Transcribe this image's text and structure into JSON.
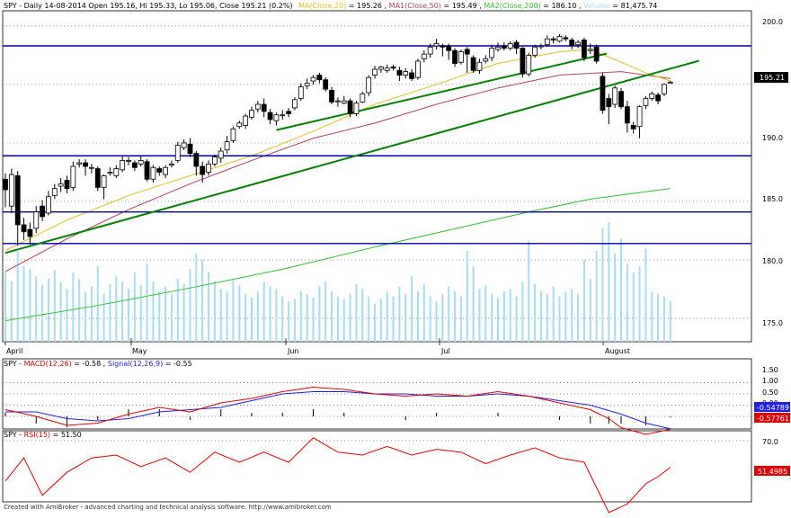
{
  "header": {
    "symbol": "SPY",
    "description": "Daily 14-08-2014 Open 195.16, Hi 195.33, Lo 195.06, Close 195.21 (0.2%)",
    "ma20_label": "MA(Close,20)",
    "ma20_value": "195.26",
    "ma50_label": "MA1(Close,50)",
    "ma50_value": "195.49",
    "ma200_label": "MA2(Close,200)",
    "ma200_value": "186.10",
    "volume_label": "Volume",
    "volume_value": "81,475.74"
  },
  "colors": {
    "ma20": "#e0c020",
    "ma50": "#b04060",
    "ma200": "#30c030",
    "volume": "#a8dcee",
    "hline": "#0000aa",
    "trend": "#008000",
    "macd": "#e00000",
    "signal": "#2020e0",
    "rsi": "#e00000"
  },
  "price_axis": {
    "ticks": [
      "200.0",
      "195.0",
      "190.0",
      "185.0",
      "180.0",
      "175.0"
    ],
    "last_label": "195.21"
  },
  "macd_panel": {
    "label_sym": "SPY",
    "macd_label": "MACD(12,26)",
    "macd_value": "-0.58",
    "signal_label": "Signal(12,26,9)",
    "signal_value": "-0.55",
    "ticks": [
      "1.50",
      "1.00",
      "0.50",
      "0.00"
    ],
    "signal_last": "-0.54789",
    "macd_last": "-0.57761"
  },
  "rsi_panel": {
    "label_sym": "SPY",
    "rsi_label": "RSI(15)",
    "rsi_value": "51.50",
    "ticks": [
      "70.0"
    ],
    "rsi_last": "51.4985"
  },
  "months": [
    "April",
    "May",
    "Jun",
    "Jul",
    "August"
  ],
  "footer": "Created with AmiBroker - advanced charting and technical analysis software. http://www.amibroker.com",
  "chart_data": {
    "type": "candlestick",
    "ylim": [
      173,
      201.3
    ],
    "horizontal_levels": [
      198.3,
      188.9,
      184.1,
      181.4
    ],
    "trendlines": [
      {
        "from": [
          0,
          180.6
        ],
        "to": [
          109,
          196.5
        ]
      },
      {
        "from": [
          44,
          191.1
        ],
        "to": [
          94,
          197.2
        ]
      }
    ],
    "candles": [
      [
        186.9,
        186.0,
        187.4,
        184.5
      ],
      [
        184.6,
        187.3,
        187.8,
        184.0
      ],
      [
        187.2,
        183.0,
        187.6,
        181.2
      ],
      [
        183.0,
        182.4,
        183.6,
        181.7
      ],
      [
        182.6,
        182.0,
        183.2,
        181.3
      ],
      [
        182.7,
        184.1,
        184.6,
        182.3
      ],
      [
        184.6,
        183.7,
        185.1,
        183.3
      ],
      [
        184.0,
        185.4,
        185.9,
        183.8
      ],
      [
        185.5,
        186.1,
        186.5,
        185.2
      ],
      [
        186.3,
        186.5,
        187.0,
        185.8
      ],
      [
        186.8,
        186.1,
        187.2,
        185.7
      ],
      [
        186.2,
        188.0,
        188.4,
        185.9
      ],
      [
        188.2,
        188.3,
        188.6,
        187.9
      ],
      [
        188.3,
        188.0,
        188.6,
        187.2
      ],
      [
        187.9,
        187.9,
        188.2,
        187.4
      ],
      [
        187.8,
        186.2,
        188.0,
        185.9
      ],
      [
        186.2,
        187.2,
        187.3,
        185.2
      ],
      [
        187.4,
        187.5,
        187.9,
        187.2
      ],
      [
        187.2,
        187.8,
        188.1,
        187.0
      ],
      [
        187.7,
        188.5,
        188.9,
        187.5
      ],
      [
        188.5,
        188.5,
        188.8,
        188.1
      ],
      [
        188.3,
        187.9,
        188.5,
        187.6
      ],
      [
        188.2,
        188.5,
        188.9,
        188.0
      ],
      [
        188.4,
        186.9,
        188.6,
        186.7
      ],
      [
        186.9,
        187.9,
        188.1,
        186.6
      ],
      [
        187.8,
        187.5,
        188.0,
        187.2
      ],
      [
        187.3,
        187.9,
        188.1,
        187.0
      ],
      [
        188.1,
        188.2,
        188.5,
        187.9
      ],
      [
        188.5,
        189.8,
        190.1,
        188.3
      ],
      [
        189.6,
        190.0,
        190.3,
        189.4
      ],
      [
        189.9,
        189.1,
        190.4,
        188.8
      ],
      [
        189.1,
        188.0,
        189.3,
        187.2
      ],
      [
        188.0,
        187.3,
        188.4,
        186.6
      ],
      [
        187.5,
        188.2,
        188.5,
        187.2
      ],
      [
        188.2,
        188.8,
        189.0,
        188.0
      ],
      [
        188.7,
        189.3,
        189.6,
        188.3
      ],
      [
        189.4,
        190.1,
        190.6,
        189.1
      ],
      [
        190.2,
        191.2,
        191.4,
        190.0
      ],
      [
        191.4,
        191.7,
        191.9,
        191.2
      ],
      [
        191.5,
        192.3,
        192.5,
        191.2
      ],
      [
        192.2,
        192.8,
        193.1,
        192.0
      ],
      [
        192.9,
        193.3,
        193.6,
        192.6
      ],
      [
        193.3,
        192.7,
        193.8,
        192.2
      ],
      [
        192.6,
        192.0,
        192.9,
        191.6
      ],
      [
        191.9,
        192.4,
        192.6,
        191.5
      ],
      [
        192.4,
        192.4,
        192.8,
        192.0
      ],
      [
        192.7,
        192.5,
        193.0,
        192.2
      ],
      [
        193.0,
        193.7,
        193.9,
        192.8
      ],
      [
        193.8,
        194.8,
        195.1,
        193.6
      ],
      [
        194.9,
        195.1,
        195.5,
        194.6
      ],
      [
        195.3,
        195.6,
        195.8,
        195.0
      ],
      [
        195.8,
        195.4,
        196.0,
        195.1
      ],
      [
        195.4,
        194.6,
        195.6,
        194.4
      ],
      [
        194.5,
        193.5,
        194.8,
        193.3
      ],
      [
        193.6,
        193.6,
        193.9,
        193.1
      ],
      [
        193.4,
        193.6,
        194.0,
        193.3
      ],
      [
        193.6,
        192.5,
        193.8,
        192.2
      ],
      [
        192.5,
        193.4,
        193.6,
        192.3
      ],
      [
        193.5,
        194.2,
        194.4,
        193.4
      ],
      [
        194.3,
        195.6,
        195.8,
        194.0
      ],
      [
        195.8,
        196.3,
        196.6,
        195.5
      ],
      [
        196.3,
        196.5,
        196.6,
        196.0
      ],
      [
        196.2,
        196.4,
        196.7,
        196.0
      ],
      [
        196.5,
        196.4,
        196.7,
        196.2
      ],
      [
        196.2,
        195.8,
        196.5,
        195.3
      ],
      [
        195.8,
        196.1,
        196.4,
        195.5
      ],
      [
        196.0,
        195.5,
        196.3,
        195.3
      ],
      [
        195.6,
        197.0,
        197.2,
        195.4
      ],
      [
        197.2,
        197.6,
        197.9,
        196.9
      ],
      [
        197.6,
        198.2,
        198.5,
        197.3
      ],
      [
        198.3,
        198.5,
        198.9,
        198.0
      ],
      [
        198.3,
        198.2,
        198.5,
        197.4
      ],
      [
        198.3,
        197.9,
        198.5,
        197.1
      ],
      [
        197.9,
        196.8,
        198.1,
        196.5
      ],
      [
        196.9,
        197.8,
        198.0,
        196.7
      ],
      [
        198.0,
        197.6,
        198.2,
        196.0
      ],
      [
        197.3,
        196.2,
        197.5,
        196.0
      ],
      [
        196.2,
        196.9,
        197.2,
        195.9
      ],
      [
        197.0,
        197.2,
        197.5,
        196.8
      ],
      [
        197.3,
        198.1,
        198.4,
        197.0
      ],
      [
        198.0,
        198.2,
        198.6,
        197.8
      ],
      [
        198.3,
        198.1,
        198.6,
        197.9
      ],
      [
        198.1,
        198.5,
        198.7,
        197.9
      ],
      [
        198.6,
        198.1,
        198.8,
        197.6
      ],
      [
        198.1,
        195.9,
        198.2,
        195.6
      ],
      [
        195.9,
        197.5,
        197.7,
        195.7
      ],
      [
        197.5,
        198.2,
        198.4,
        197.3
      ],
      [
        198.3,
        198.3,
        198.5,
        198.0
      ],
      [
        198.4,
        198.9,
        199.2,
        198.2
      ],
      [
        198.9,
        198.8,
        199.1,
        198.5
      ],
      [
        198.7,
        199.1,
        199.3,
        198.6
      ],
      [
        199.0,
        198.9,
        199.2,
        198.7
      ],
      [
        198.8,
        198.3,
        199.0,
        198.0
      ],
      [
        198.4,
        198.6,
        198.8,
        198.1
      ],
      [
        198.8,
        197.3,
        199.0,
        197.0
      ],
      [
        197.9,
        198.0,
        198.5,
        197.6
      ],
      [
        198.2,
        197.0,
        198.4,
        196.8
      ],
      [
        195.7,
        192.8,
        196.0,
        192.5
      ],
      [
        193.8,
        193.1,
        194.2,
        191.6
      ],
      [
        193.3,
        194.7,
        194.9,
        193.0
      ],
      [
        194.4,
        193.1,
        194.7,
        192.9
      ],
      [
        193.1,
        191.7,
        193.6,
        190.9
      ],
      [
        191.5,
        191.2,
        191.8,
        190.8
      ],
      [
        191.4,
        193.1,
        193.2,
        190.4
      ],
      [
        193.2,
        193.8,
        194.0,
        192.9
      ],
      [
        193.8,
        194.2,
        194.4,
        193.6
      ],
      [
        194.1,
        193.6,
        194.3,
        193.3
      ],
      [
        194.2,
        195.0,
        195.1,
        194.0
      ],
      [
        195.2,
        195.2,
        195.3,
        195.1
      ]
    ],
    "ma20": [
      [
        0,
        180.8
      ],
      [
        10,
        183.4
      ],
      [
        20,
        185.5
      ],
      [
        30,
        187.2
      ],
      [
        40,
        188.9
      ],
      [
        50,
        191.0
      ],
      [
        60,
        193.3
      ],
      [
        70,
        195.0
      ],
      [
        80,
        196.8
      ],
      [
        90,
        197.8
      ],
      [
        95,
        198.0
      ],
      [
        100,
        196.9
      ],
      [
        104,
        196.0
      ],
      [
        108,
        195.3
      ]
    ],
    "ma50": [
      [
        0,
        179.0
      ],
      [
        10,
        181.8
      ],
      [
        20,
        184.3
      ],
      [
        30,
        186.5
      ],
      [
        40,
        188.5
      ],
      [
        50,
        190.4
      ],
      [
        60,
        191.7
      ],
      [
        70,
        193.3
      ],
      [
        80,
        194.7
      ],
      [
        90,
        195.8
      ],
      [
        100,
        196.1
      ],
      [
        108,
        195.5
      ]
    ],
    "ma200": [
      [
        0,
        174.8
      ],
      [
        15,
        176.1
      ],
      [
        30,
        177.6
      ],
      [
        45,
        179.2
      ],
      [
        60,
        181.1
      ],
      [
        75,
        182.9
      ],
      [
        85,
        184.1
      ],
      [
        95,
        185.2
      ],
      [
        108,
        186.1
      ]
    ],
    "volume": [
      55,
      48,
      72,
      60,
      58,
      52,
      45,
      50,
      57,
      47,
      42,
      55,
      50,
      40,
      44,
      60,
      38,
      46,
      52,
      48,
      42,
      55,
      45,
      62,
      48,
      40,
      44,
      38,
      50,
      46,
      58,
      70,
      65,
      55,
      48,
      42,
      40,
      50,
      45,
      38,
      35,
      40,
      48,
      44,
      42,
      36,
      32,
      34,
      40,
      38,
      35,
      44,
      48,
      40,
      36,
      34,
      38,
      46,
      42,
      36,
      30,
      34,
      40,
      36,
      44,
      38,
      52,
      40,
      46,
      36,
      32,
      38,
      44,
      40,
      36,
      72,
      60,
      42,
      45,
      38,
      35,
      40,
      42,
      36,
      48,
      80,
      46,
      40,
      38,
      44,
      36,
      40,
      42,
      38,
      65,
      50,
      72,
      90,
      95,
      70,
      82,
      62,
      55,
      60,
      74,
      40,
      38,
      36,
      32
    ],
    "macd": [
      [
        0,
        0.3
      ],
      [
        5,
        0.0
      ],
      [
        10,
        -0.4
      ],
      [
        15,
        -0.3
      ],
      [
        20,
        0.1
      ],
      [
        25,
        0.4
      ],
      [
        30,
        0.2
      ],
      [
        35,
        0.6
      ],
      [
        40,
        0.8
      ],
      [
        45,
        1.1
      ],
      [
        50,
        1.3
      ],
      [
        55,
        1.2
      ],
      [
        60,
        1.0
      ],
      [
        65,
        0.9
      ],
      [
        70,
        1.0
      ],
      [
        75,
        0.9
      ],
      [
        80,
        1.1
      ],
      [
        85,
        0.9
      ],
      [
        90,
        0.6
      ],
      [
        95,
        0.3
      ],
      [
        98,
        -0.1
      ],
      [
        100,
        -0.5
      ],
      [
        104,
        -0.8
      ],
      [
        108,
        -0.58
      ]
    ],
    "signal": [
      [
        0,
        0.2
      ],
      [
        5,
        0.2
      ],
      [
        10,
        -0.1
      ],
      [
        15,
        -0.2
      ],
      [
        20,
        -0.1
      ],
      [
        25,
        0.2
      ],
      [
        30,
        0.3
      ],
      [
        35,
        0.4
      ],
      [
        40,
        0.7
      ],
      [
        45,
        1.0
      ],
      [
        50,
        1.1
      ],
      [
        55,
        1.1
      ],
      [
        60,
        1.0
      ],
      [
        65,
        1.0
      ],
      [
        70,
        0.9
      ],
      [
        75,
        0.9
      ],
      [
        80,
        1.0
      ],
      [
        85,
        0.9
      ],
      [
        90,
        0.7
      ],
      [
        95,
        0.5
      ],
      [
        100,
        0.1
      ],
      [
        104,
        -0.3
      ],
      [
        108,
        -0.55
      ]
    ],
    "rsi": [
      [
        0,
        42
      ],
      [
        3,
        58
      ],
      [
        6,
        32
      ],
      [
        10,
        48
      ],
      [
        14,
        58
      ],
      [
        18,
        60
      ],
      [
        22,
        52
      ],
      [
        26,
        58
      ],
      [
        30,
        48
      ],
      [
        34,
        62
      ],
      [
        38,
        55
      ],
      [
        42,
        62
      ],
      [
        46,
        55
      ],
      [
        50,
        72
      ],
      [
        54,
        62
      ],
      [
        58,
        60
      ],
      [
        62,
        66
      ],
      [
        66,
        60
      ],
      [
        70,
        64
      ],
      [
        74,
        62
      ],
      [
        78,
        54
      ],
      [
        82,
        60
      ],
      [
        86,
        65
      ],
      [
        90,
        58
      ],
      [
        94,
        55
      ],
      [
        98,
        20
      ],
      [
        101,
        26
      ],
      [
        104,
        40
      ],
      [
        106,
        45
      ],
      [
        108,
        51.5
      ]
    ]
  }
}
